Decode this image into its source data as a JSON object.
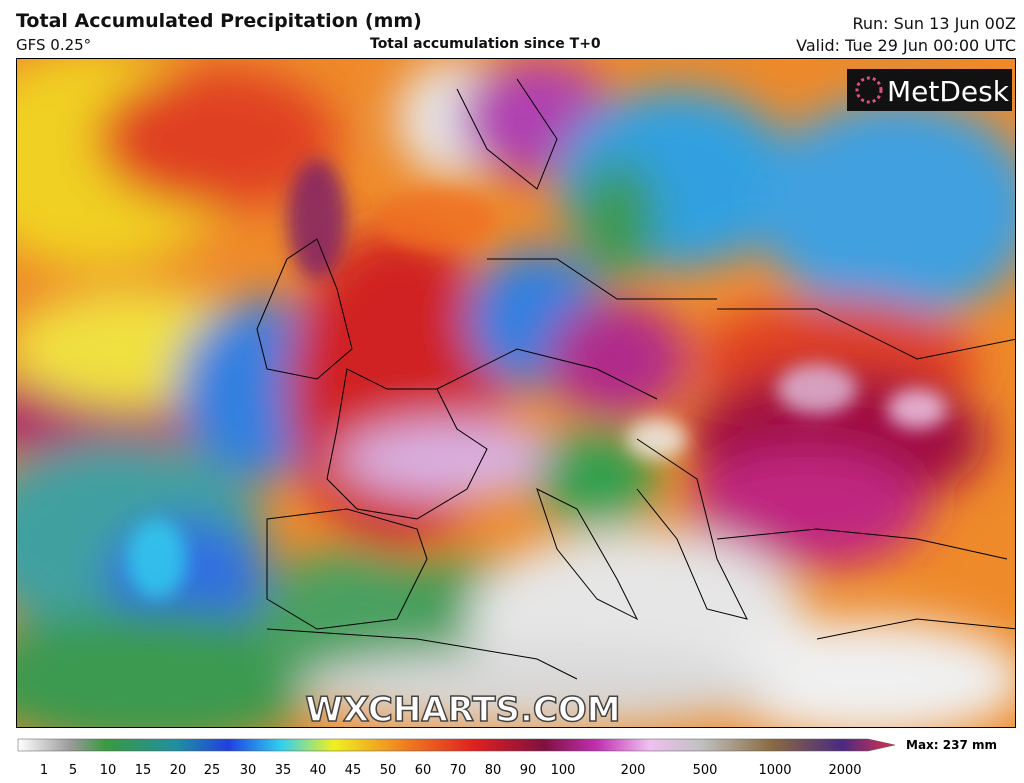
{
  "header": {
    "title": "Total Accumulated Precipitation (mm)",
    "model": "GFS 0.25°",
    "subtitle": "Total accumulation since T+0",
    "run": "Run: Sun 13 Jun 00Z",
    "valid": "Valid: Tue 29 Jun 00:00 UTC"
  },
  "logo": "MetDesk",
  "watermark": "WXCHARTS.COM",
  "legend": {
    "ticks": [
      "1",
      "5",
      "10",
      "15",
      "20",
      "25",
      "30",
      "35",
      "40",
      "45",
      "50",
      "60",
      "70",
      "80",
      "90",
      "100",
      "200",
      "500",
      "1000",
      "2000"
    ],
    "max": "Max: 237 mm"
  }
}
